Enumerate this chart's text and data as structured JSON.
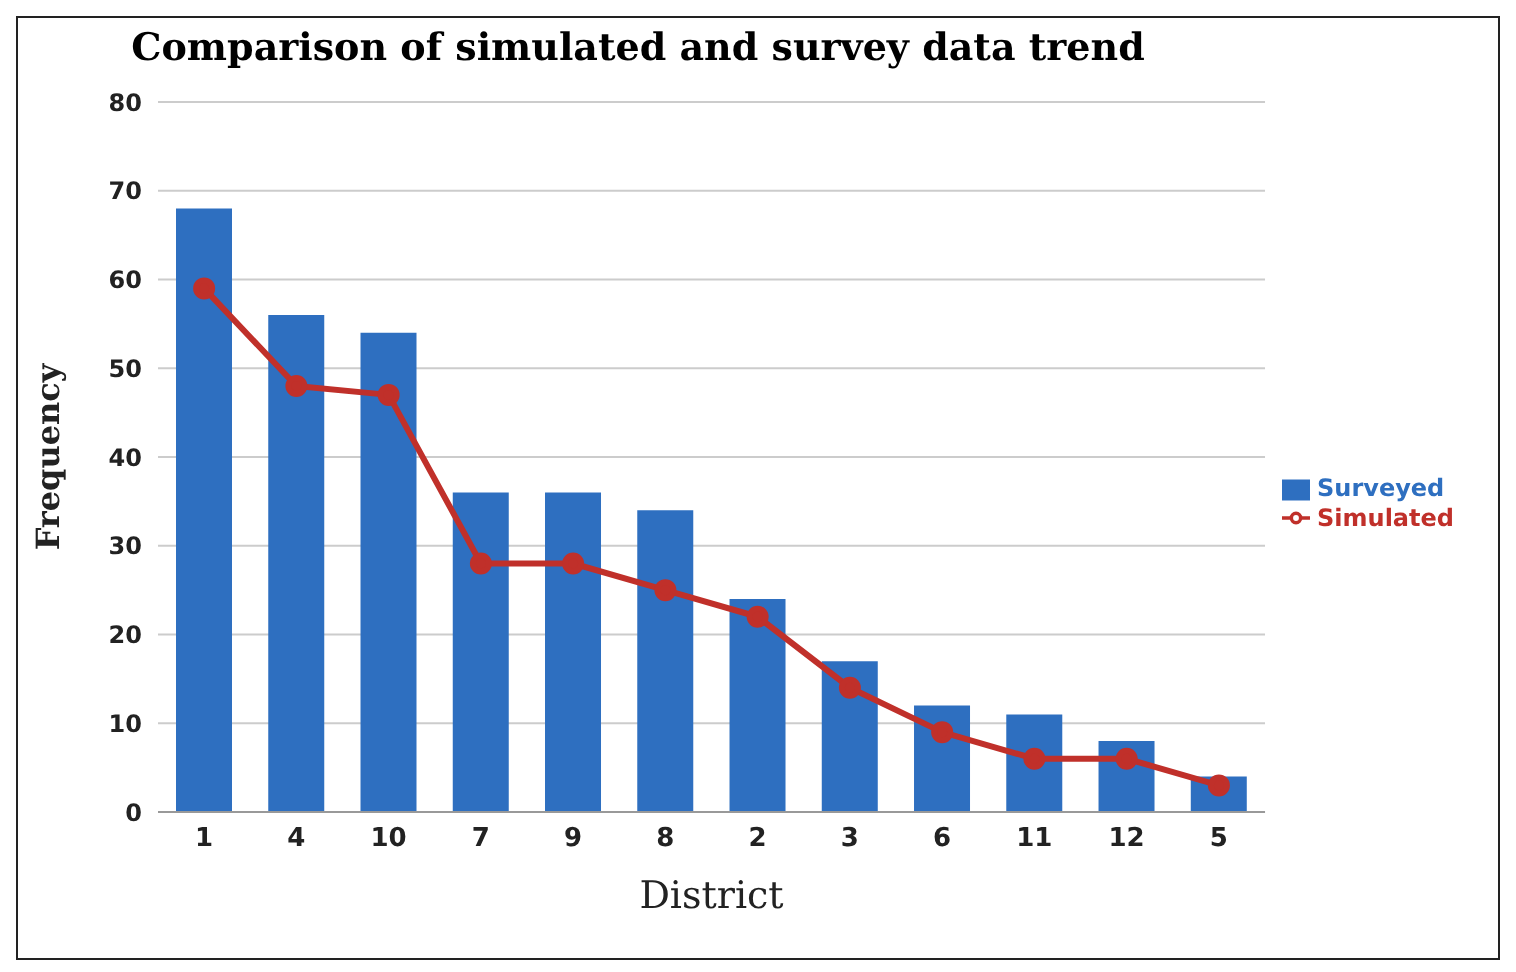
{
  "chart_data": {
    "type": "bar",
    "title": "Comparison of simulated and survey data trend",
    "xlabel": "District",
    "ylabel": "Frequency",
    "categories": [
      "1",
      "4",
      "10",
      "7",
      "9",
      "8",
      "2",
      "3",
      "6",
      "11",
      "12",
      "5"
    ],
    "series": [
      {
        "name": "Surveyed",
        "color": "#2e6fc0",
        "values": [
          68,
          56,
          54,
          36,
          36,
          34,
          24,
          17,
          12,
          11,
          8,
          4
        ]
      },
      {
        "name": "Simulated",
        "type": "line",
        "color": "#c0302a",
        "marker": "circle",
        "values": [
          59,
          48,
          47,
          28,
          28,
          25,
          22,
          14,
          9,
          6,
          6,
          3
        ]
      }
    ],
    "ylim": [
      0,
      80
    ],
    "yticks": [
      0,
      10,
      20,
      30,
      40,
      50,
      60,
      70,
      80
    ],
    "grid": "y",
    "legend": "right"
  }
}
